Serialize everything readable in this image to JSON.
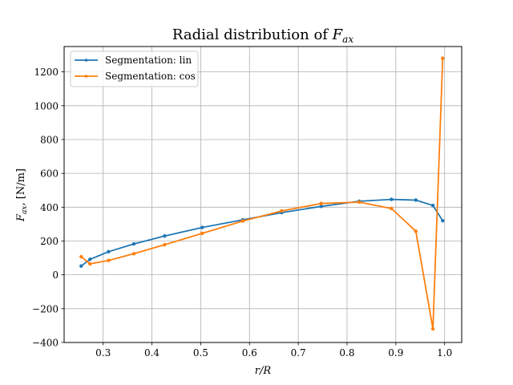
{
  "chart_data": {
    "type": "line",
    "title": {
      "text": "Radial distribution of ",
      "math_base": "F",
      "math_sub": "ax"
    },
    "xlabel": {
      "math_main": "r/R"
    },
    "ylabel": {
      "math_base": "F",
      "math_sub": "ax",
      "suffix": ", [N/m]"
    },
    "xlim": [
      0.22,
      1.035
    ],
    "ylim": [
      -400,
      1350
    ],
    "xticks": [
      0.3,
      0.4,
      0.5,
      0.6,
      0.7,
      0.8,
      0.9,
      1.0
    ],
    "xtick_labels": [
      "0.3",
      "0.4",
      "0.5",
      "0.6",
      "0.7",
      "0.8",
      "0.9",
      "1.0"
    ],
    "yticks": [
      -400,
      -200,
      0,
      200,
      400,
      600,
      800,
      1000,
      1200
    ],
    "ytick_labels": [
      "−400",
      "−200",
      "0",
      "200",
      "400",
      "600",
      "800",
      "1000",
      "1200"
    ],
    "grid": true,
    "legend_position": "top-left",
    "series": [
      {
        "name": "Segmentation: lin",
        "color": "#1f77b4",
        "x": [
          0.255,
          0.273,
          0.311,
          0.363,
          0.426,
          0.503,
          0.586,
          0.666,
          0.747,
          0.825,
          0.891,
          0.941,
          0.976,
          0.996
        ],
        "y": [
          52,
          92,
          137,
          183,
          230,
          280,
          325,
          368,
          405,
          435,
          446,
          442,
          410,
          320
        ]
      },
      {
        "name": "Segmentation: cos",
        "color": "#ff7f0e",
        "x": [
          0.255,
          0.273,
          0.311,
          0.363,
          0.426,
          0.503,
          0.586,
          0.666,
          0.747,
          0.825,
          0.891,
          0.941,
          0.976,
          0.996
        ],
        "y": [
          107,
          65,
          85,
          125,
          178,
          245,
          318,
          378,
          422,
          430,
          392,
          258,
          -320,
          1280
        ]
      }
    ]
  }
}
